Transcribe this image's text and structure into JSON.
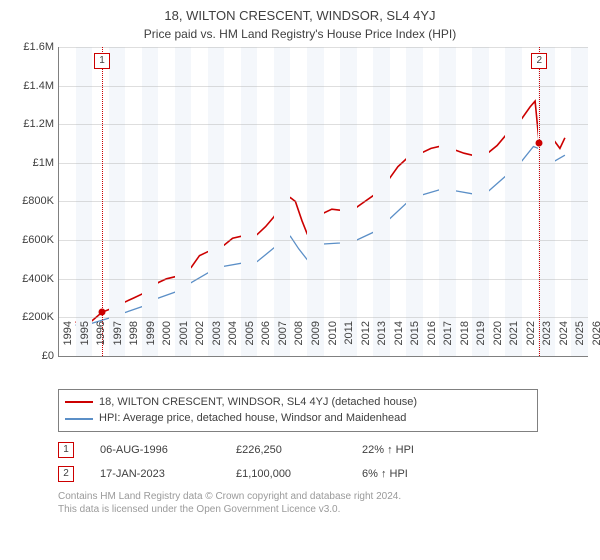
{
  "title": "18, WILTON CRESCENT, WINDSOR, SL4 4YJ",
  "subtitle": "Price paid vs. HM Land Registry's House Price Index (HPI)",
  "chart": {
    "type": "line",
    "background_color": "#ffffff",
    "band_color": "#f4f7fb",
    "grid_color": "#c9c9c9",
    "axis_color": "#808080",
    "tick_font_size": 11,
    "x_min": 1994,
    "x_max": 2026,
    "y_min": 0,
    "y_max": 1600000,
    "y_ticks": [
      "£0",
      "£200K",
      "£400K",
      "£600K",
      "£800K",
      "£1M",
      "£1.2M",
      "£1.4M",
      "£1.6M"
    ],
    "x_ticks": [
      1994,
      1995,
      1996,
      1997,
      1998,
      1999,
      2000,
      2001,
      2002,
      2003,
      2004,
      2005,
      2006,
      2007,
      2008,
      2009,
      2010,
      2011,
      2012,
      2013,
      2014,
      2015,
      2016,
      2017,
      2018,
      2019,
      2020,
      2021,
      2022,
      2023,
      2024,
      2025,
      2026
    ],
    "series": [
      {
        "name": "18, WILTON CRESCENT, WINDSOR, SL4 4YJ (detached house)",
        "color": "#cc0000",
        "line_width": 1.6,
        "data": [
          [
            1995.0,
            175000
          ],
          [
            1995.5,
            178000
          ],
          [
            1996.0,
            183000
          ],
          [
            1996.6,
            226250
          ],
          [
            1997.0,
            240000
          ],
          [
            1997.5,
            255000
          ],
          [
            1998.0,
            280000
          ],
          [
            1998.5,
            300000
          ],
          [
            1999.0,
            320000
          ],
          [
            1999.5,
            345000
          ],
          [
            2000.0,
            380000
          ],
          [
            2000.5,
            400000
          ],
          [
            2001.0,
            410000
          ],
          [
            2001.5,
            420000
          ],
          [
            2002.0,
            460000
          ],
          [
            2002.5,
            520000
          ],
          [
            2003.0,
            540000
          ],
          [
            2003.5,
            550000
          ],
          [
            2004.0,
            575000
          ],
          [
            2004.5,
            610000
          ],
          [
            2005.0,
            620000
          ],
          [
            2005.5,
            600000
          ],
          [
            2006.0,
            630000
          ],
          [
            2006.5,
            670000
          ],
          [
            2007.0,
            720000
          ],
          [
            2007.5,
            790000
          ],
          [
            2008.0,
            820000
          ],
          [
            2008.3,
            800000
          ],
          [
            2008.7,
            700000
          ],
          [
            2009.0,
            635000
          ],
          [
            2009.5,
            680000
          ],
          [
            2010.0,
            740000
          ],
          [
            2010.5,
            760000
          ],
          [
            2011.0,
            755000
          ],
          [
            2011.5,
            745000
          ],
          [
            2012.0,
            770000
          ],
          [
            2012.5,
            800000
          ],
          [
            2013.0,
            830000
          ],
          [
            2013.5,
            870000
          ],
          [
            2014.0,
            920000
          ],
          [
            2014.5,
            980000
          ],
          [
            2015.0,
            1020000
          ],
          [
            2015.5,
            1060000
          ],
          [
            2016.0,
            1055000
          ],
          [
            2016.5,
            1075000
          ],
          [
            2017.0,
            1085000
          ],
          [
            2017.5,
            1070000
          ],
          [
            2018.0,
            1065000
          ],
          [
            2018.5,
            1050000
          ],
          [
            2019.0,
            1040000
          ],
          [
            2019.5,
            1035000
          ],
          [
            2020.0,
            1055000
          ],
          [
            2020.5,
            1090000
          ],
          [
            2021.0,
            1140000
          ],
          [
            2021.5,
            1190000
          ],
          [
            2022.0,
            1230000
          ],
          [
            2022.5,
            1290000
          ],
          [
            2022.8,
            1320000
          ],
          [
            2023.05,
            1100000
          ],
          [
            2023.5,
            1080000
          ],
          [
            2024.0,
            1110000
          ],
          [
            2024.3,
            1075000
          ],
          [
            2024.6,
            1130000
          ]
        ]
      },
      {
        "name": "HPI: Average price, detached house, Windsor and Maidenhead",
        "color": "#5b8fc7",
        "line_width": 1.3,
        "data": [
          [
            1995.0,
            160000
          ],
          [
            1996.0,
            170000
          ],
          [
            1997.0,
            195000
          ],
          [
            1998.0,
            225000
          ],
          [
            1999.0,
            255000
          ],
          [
            2000.0,
            300000
          ],
          [
            2001.0,
            330000
          ],
          [
            2002.0,
            380000
          ],
          [
            2003.0,
            430000
          ],
          [
            2004.0,
            465000
          ],
          [
            2005.0,
            480000
          ],
          [
            2005.5,
            465000
          ],
          [
            2006.0,
            490000
          ],
          [
            2007.0,
            560000
          ],
          [
            2007.7,
            600000
          ],
          [
            2008.0,
            620000
          ],
          [
            2008.5,
            555000
          ],
          [
            2009.0,
            500000
          ],
          [
            2009.5,
            530000
          ],
          [
            2010.0,
            580000
          ],
          [
            2011.0,
            585000
          ],
          [
            2012.0,
            600000
          ],
          [
            2013.0,
            640000
          ],
          [
            2014.0,
            710000
          ],
          [
            2015.0,
            790000
          ],
          [
            2016.0,
            835000
          ],
          [
            2017.0,
            860000
          ],
          [
            2018.0,
            855000
          ],
          [
            2019.0,
            840000
          ],
          [
            2020.0,
            855000
          ],
          [
            2021.0,
            930000
          ],
          [
            2022.0,
            1010000
          ],
          [
            2022.7,
            1085000
          ],
          [
            2023.0,
            1075000
          ],
          [
            2023.5,
            1020000
          ],
          [
            2024.0,
            1010000
          ],
          [
            2024.6,
            1040000
          ]
        ]
      }
    ],
    "sale_markers": [
      {
        "n": "1",
        "x": 1996.6,
        "y": 226250,
        "color": "#cc0000"
      },
      {
        "n": "2",
        "x": 2023.05,
        "y": 1100000,
        "color": "#cc0000"
      }
    ]
  },
  "legend": {
    "items": [
      {
        "color": "#cc0000",
        "label": "18, WILTON CRESCENT, WINDSOR, SL4 4YJ (detached house)"
      },
      {
        "color": "#5b8fc7",
        "label": "HPI: Average price, detached house, Windsor and Maidenhead"
      }
    ]
  },
  "sales": [
    {
      "n": "1",
      "date": "06-AUG-1996",
      "price": "£226,250",
      "delta": "22% ↑ HPI",
      "color": "#cc0000"
    },
    {
      "n": "2",
      "date": "17-JAN-2023",
      "price": "£1,100,000",
      "delta": "6% ↑ HPI",
      "color": "#cc0000"
    }
  ],
  "footer": {
    "line1": "Contains HM Land Registry data © Crown copyright and database right 2024.",
    "line2": "This data is licensed under the Open Government Licence v3.0."
  }
}
